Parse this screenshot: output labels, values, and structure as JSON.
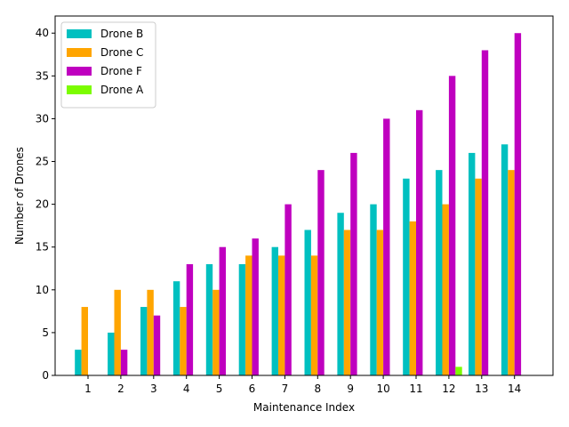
{
  "chart_data": {
    "type": "bar",
    "title": "",
    "xlabel": "Maintenance Index",
    "ylabel": "Number of Drones",
    "categories": [
      "1",
      "2",
      "3",
      "4",
      "5",
      "6",
      "7",
      "8",
      "9",
      "10",
      "11",
      "12",
      "13",
      "14"
    ],
    "ylim": [
      0,
      42
    ],
    "yticks": [
      0,
      5,
      10,
      15,
      20,
      25,
      30,
      35,
      40
    ],
    "grid": false,
    "legend_position": "top-left",
    "series": [
      {
        "name": "Drone B",
        "color": "#00c0c0",
        "values": [
          3,
          5,
          8,
          11,
          13,
          13,
          15,
          17,
          19,
          20,
          23,
          24,
          26,
          27
        ]
      },
      {
        "name": "Drone C",
        "color": "#ffa500",
        "values": [
          8,
          10,
          10,
          8,
          10,
          14,
          14,
          14,
          17,
          17,
          18,
          20,
          23,
          24
        ]
      },
      {
        "name": "Drone F",
        "color": "#bf00bf",
        "values": [
          0,
          3,
          7,
          13,
          15,
          16,
          20,
          24,
          26,
          30,
          31,
          35,
          38,
          40
        ]
      },
      {
        "name": "Drone A",
        "color": "#7cfc00",
        "values": [
          0,
          0,
          0,
          0,
          0,
          0,
          0,
          0,
          0,
          0,
          0,
          1,
          0,
          0
        ]
      }
    ]
  }
}
